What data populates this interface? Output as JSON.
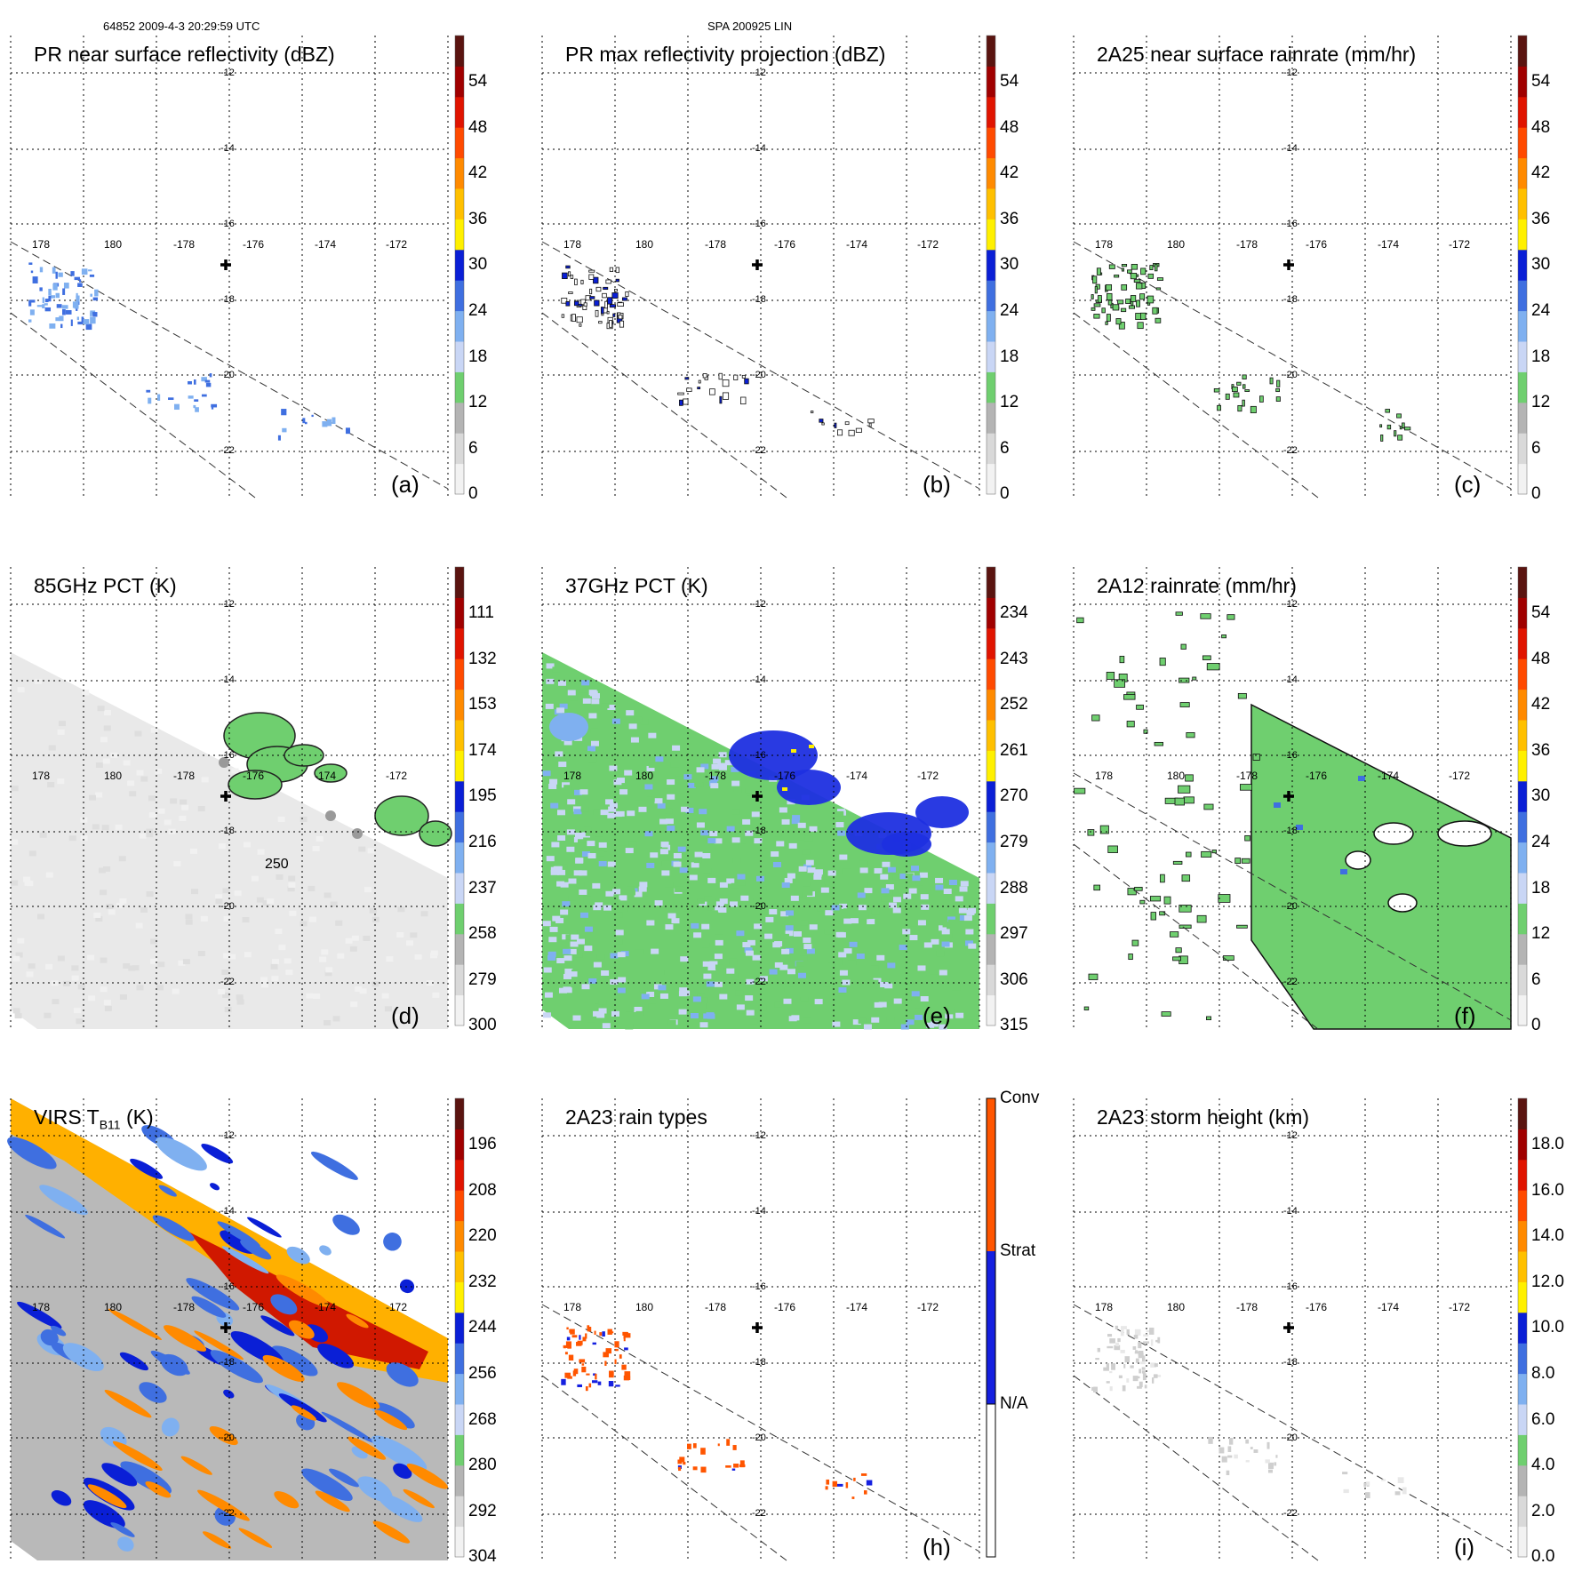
{
  "header": {
    "left": "64852 2009-4-3 20:29:59 UTC",
    "center": "SPA 200925 LIN"
  },
  "grid": {
    "lat_labels": [
      "-12",
      "-14",
      "-16",
      "-18",
      "-20",
      "-22"
    ],
    "lon_labels": [
      "178",
      "180",
      "-178",
      "-176",
      "-174",
      "-172"
    ]
  },
  "panels": [
    {
      "title": "PR near surface reflectivity (dBZ)",
      "label": "(a)",
      "ticks": [
        "54",
        "48",
        "42",
        "36",
        "30",
        "24",
        "18",
        "12",
        "6",
        "0"
      ]
    },
    {
      "title": "PR max reflectivity projection (dBZ)",
      "label": "(b)",
      "ticks": [
        "54",
        "48",
        "42",
        "36",
        "30",
        "24",
        "18",
        "12",
        "6",
        "0"
      ]
    },
    {
      "title": "2A25 near surface rainrate (mm/hr)",
      "label": "(c)",
      "ticks": [
        "54",
        "48",
        "42",
        "36",
        "30",
        "24",
        "18",
        "12",
        "6",
        "0"
      ]
    },
    {
      "title": "85GHz PCT (K)",
      "label": "(d)",
      "ticks": [
        "111",
        "132",
        "153",
        "174",
        "195",
        "216",
        "237",
        "258",
        "279",
        "300"
      ],
      "contour_label": "250"
    },
    {
      "title": "37GHz PCT (K)",
      "label": "(e)",
      "ticks": [
        "234",
        "243",
        "252",
        "261",
        "270",
        "279",
        "288",
        "297",
        "306",
        "315"
      ]
    },
    {
      "title": "2A12 rainrate (mm/hr)",
      "label": "(f)",
      "ticks": [
        "54",
        "48",
        "42",
        "36",
        "30",
        "24",
        "18",
        "12",
        "6",
        "0"
      ]
    },
    {
      "title_main": "VIRS T",
      "title_sub": "B11",
      "title_tail": " (K)",
      "label": "",
      "ticks": [
        "196",
        "208",
        "220",
        "232",
        "244",
        "256",
        "268",
        "280",
        "292",
        "304"
      ]
    },
    {
      "title": "2A23 rain types",
      "label": "(h)",
      "ticks": [
        "Conv",
        "Strat",
        "N/A"
      ]
    },
    {
      "title": "2A23 storm height (km)",
      "label": "(i)",
      "ticks": [
        "18.0",
        "16.0",
        "14.0",
        "12.0",
        "10.0",
        "8.0",
        "6.0",
        "4.0",
        "2.0",
        "0.0"
      ]
    }
  ],
  "colors": {
    "scale": [
      "#f2f2f2",
      "#d9d9d9",
      "#b4b4b4",
      "#6fcf6f",
      "#c9d6f5",
      "#7fb0f0",
      "#3f6fe0",
      "#0a1fd6",
      "#fff000",
      "#ffc000",
      "#ff8a00",
      "#ff4a00",
      "#e01400",
      "#a00000",
      "#5a1410"
    ],
    "conv": "#ff5500",
    "strat": "#1520e0"
  }
}
